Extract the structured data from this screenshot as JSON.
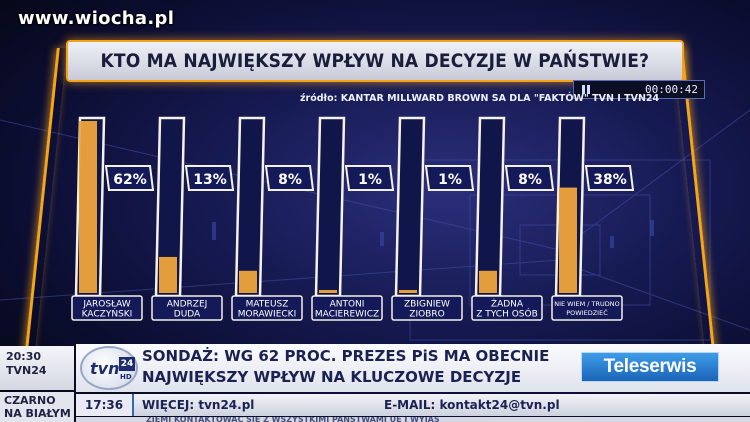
{
  "watermark": "www.wiocha.pl",
  "player": {
    "time": "00:00:42",
    "icon": "pause-icon"
  },
  "chart_data": {
    "type": "bar",
    "title": "KTO MA NAJWIĘKSZY WPŁYW NA DECYZJE W PAŃSTWIE?",
    "subtitle": "źródło: KANTAR MILLWARD BROWN SA DLA \"FAKTÓW\" TVN I TVN24",
    "categories": [
      [
        "JAROSŁAW",
        "KACZYŃSKI"
      ],
      [
        "ANDRZEJ",
        "DUDA"
      ],
      [
        "MATEUSZ",
        "MORAWIECKI"
      ],
      [
        "ANTONI",
        "MACIEREWICZ"
      ],
      [
        "ZBIGNIEW",
        "ZIOBRO"
      ],
      [
        "ŻADNA",
        "Z TYCH OSÓB"
      ],
      [
        "NIE WIEM / TRUDNO",
        "POWIEDZIEĆ"
      ]
    ],
    "labels": [
      "62%",
      "13%",
      "8%",
      "1%",
      "1%",
      "8%",
      "38%"
    ],
    "values": [
      62,
      13,
      8,
      1,
      1,
      8,
      38
    ],
    "ylim": [
      0,
      62
    ],
    "colors": {
      "fill": "#f0a43c",
      "frame": "#f4f1e8",
      "accent": "#f6a51a"
    }
  },
  "lower_third": {
    "time_top": "20:30",
    "channel_top": "TVN24",
    "left_tag_line1": "CZARNO",
    "left_tag_line2": "NA BIAŁYM",
    "logo_text": "tvn",
    "logo_number": "24",
    "logo_hd": "HD",
    "headline_line1": "SONDAŻ: WG 62 PROC. PREZES PiS MA OBECNIE",
    "headline_line2": "NAJWIĘKSZY WPŁYW NA KLUCZOWE DECYZJE",
    "badge": "Teleserwis",
    "ticker_time": "17:36",
    "ticker_more": "WIĘCEJ: tvn24.pl",
    "ticker_email": "E-MAIL: kontakt24@tvn.pl",
    "crawl_text": "ZIEMI KONTAKTOWAĆ SIĘ Z WSZYSTKIMI PAŃSTWAMI UE I WYJAŚ"
  }
}
